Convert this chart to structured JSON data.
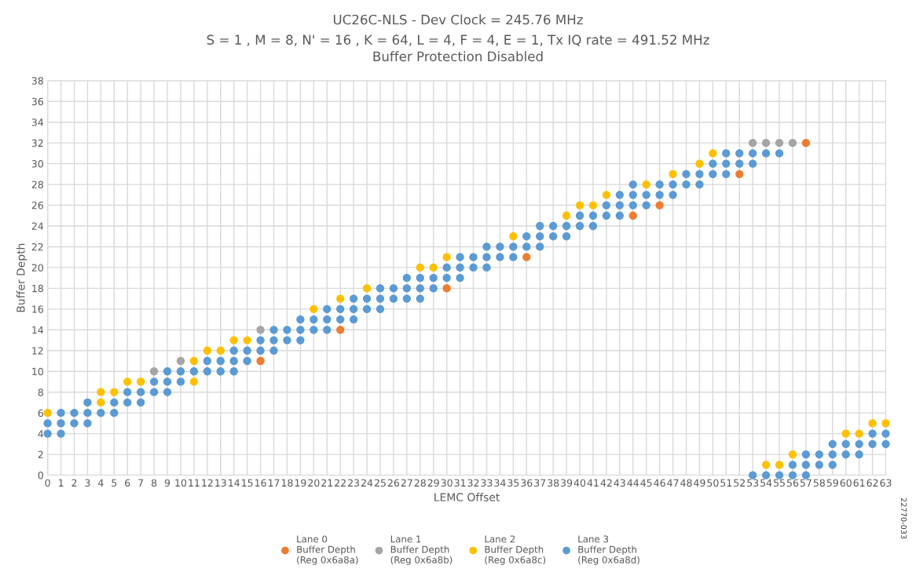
{
  "chart_data": {
    "type": "scatter",
    "title": "UC26C-NLS - Dev Clock = 245.76 MHz",
    "subtitle": "S = 1 , M = 8, N' = 16 , K = 64, L = 4, F = 4, E = 1, Tx IQ rate = 491.52 MHz\nBuffer Protection Disabled",
    "xlabel": "LEMC Offset",
    "ylabel": "Buffer Depth",
    "annotations": [
      "22770-033"
    ],
    "xlim": [
      0,
      63
    ],
    "xticks": [
      0,
      1,
      2,
      3,
      4,
      5,
      6,
      7,
      8,
      9,
      10,
      11,
      12,
      13,
      14,
      15,
      16,
      17,
      18,
      19,
      20,
      21,
      22,
      23,
      24,
      25,
      26,
      27,
      28,
      29,
      30,
      31,
      32,
      33,
      34,
      35,
      36,
      37,
      38,
      39,
      40,
      41,
      42,
      43,
      44,
      45,
      46,
      47,
      48,
      49,
      50,
      51,
      52,
      53,
      54,
      55,
      56,
      57,
      58,
      59,
      60,
      61,
      62,
      63
    ],
    "ylim": [
      0,
      38
    ],
    "yticks": [
      0,
      2,
      4,
      6,
      8,
      10,
      12,
      14,
      16,
      18,
      20,
      22,
      24,
      26,
      28,
      30,
      32,
      34,
      36,
      38
    ],
    "grid": true,
    "legend": "bottom",
    "marker": "circle",
    "series": [
      {
        "name": "Lane 0\nBuffer Depth\n(Reg 0x6a8a)",
        "color": "#ed7d31",
        "x": [
          16,
          22,
          30,
          36,
          44,
          46,
          52,
          57
        ],
        "values": [
          11,
          14,
          18,
          21,
          25,
          26,
          29,
          32
        ]
      },
      {
        "name": "Lane 1\nBuffer Depth\n(Reg 0x6a8b)",
        "color": "#a5a5a5",
        "x": [
          8,
          10,
          16,
          53,
          54,
          55,
          56
        ],
        "values": [
          10,
          11,
          14,
          32,
          32,
          32,
          32
        ]
      },
      {
        "name": "Lane 2\nBuffer Depth\n(Reg 0x6a8c)",
        "color": "#ffc000",
        "x": [
          0,
          4,
          4,
          5,
          6,
          7,
          11,
          11,
          12,
          13,
          14,
          15,
          20,
          22,
          24,
          28,
          29,
          30,
          35,
          39,
          40,
          41,
          42,
          45,
          47,
          49,
          50,
          54,
          55,
          56,
          60,
          61,
          62,
          63
        ],
        "values": [
          6,
          8,
          7,
          8,
          9,
          9,
          11,
          9,
          12,
          12,
          13,
          13,
          16,
          17,
          18,
          20,
          20,
          21,
          23,
          25,
          26,
          26,
          27,
          28,
          29,
          30,
          31,
          1,
          1,
          2,
          4,
          4,
          5,
          5
        ]
      },
      {
        "name": "Lane 3\nBuffer Depth\n(Reg 0x6a8d)",
        "color": "#5b9bd5",
        "x": [
          0,
          0,
          1,
          1,
          1,
          2,
          2,
          3,
          3,
          3,
          4,
          5,
          5,
          6,
          6,
          7,
          7,
          8,
          8,
          9,
          9,
          9,
          10,
          10,
          11,
          12,
          12,
          13,
          13,
          14,
          14,
          14,
          15,
          15,
          16,
          16,
          17,
          17,
          17,
          18,
          18,
          19,
          19,
          19,
          20,
          20,
          21,
          21,
          21,
          22,
          22,
          23,
          23,
          23,
          24,
          24,
          25,
          25,
          25,
          26,
          26,
          27,
          27,
          27,
          28,
          28,
          28,
          29,
          29,
          30,
          30,
          31,
          31,
          31,
          32,
          32,
          33,
          33,
          33,
          34,
          34,
          35,
          35,
          36,
          36,
          37,
          37,
          37,
          38,
          38,
          39,
          39,
          40,
          40,
          41,
          41,
          42,
          42,
          43,
          43,
          43,
          44,
          44,
          44,
          45,
          45,
          46,
          46,
          47,
          47,
          48,
          48,
          49,
          49,
          50,
          50,
          51,
          51,
          51,
          52,
          52,
          53,
          53,
          53,
          54,
          54,
          55,
          55,
          56,
          56,
          57,
          57,
          57,
          58,
          58,
          59,
          59,
          59,
          60,
          60,
          61,
          61,
          62,
          62,
          63,
          63
        ],
        "values": [
          5,
          4,
          6,
          5,
          4,
          6,
          5,
          7,
          6,
          5,
          6,
          7,
          6,
          8,
          7,
          8,
          7,
          9,
          8,
          10,
          9,
          8,
          10,
          9,
          10,
          11,
          10,
          11,
          10,
          12,
          11,
          10,
          12,
          11,
          13,
          12,
          14,
          13,
          12,
          14,
          13,
          15,
          14,
          13,
          15,
          14,
          16,
          15,
          14,
          16,
          15,
          17,
          16,
          15,
          17,
          16,
          18,
          17,
          16,
          18,
          17,
          19,
          18,
          17,
          19,
          18,
          17,
          19,
          18,
          20,
          19,
          21,
          20,
          19,
          21,
          20,
          22,
          21,
          20,
          22,
          21,
          22,
          21,
          23,
          22,
          24,
          23,
          22,
          24,
          23,
          24,
          23,
          25,
          24,
          25,
          24,
          26,
          25,
          27,
          26,
          25,
          28,
          27,
          26,
          27,
          26,
          28,
          27,
          28,
          27,
          29,
          28,
          29,
          28,
          30,
          29,
          31,
          30,
          29,
          31,
          30,
          31,
          30,
          0,
          31,
          0,
          31,
          0,
          1,
          0,
          2,
          1,
          0,
          2,
          1,
          3,
          2,
          1,
          3,
          2,
          3,
          2,
          4,
          3,
          4,
          3
        ]
      }
    ]
  }
}
